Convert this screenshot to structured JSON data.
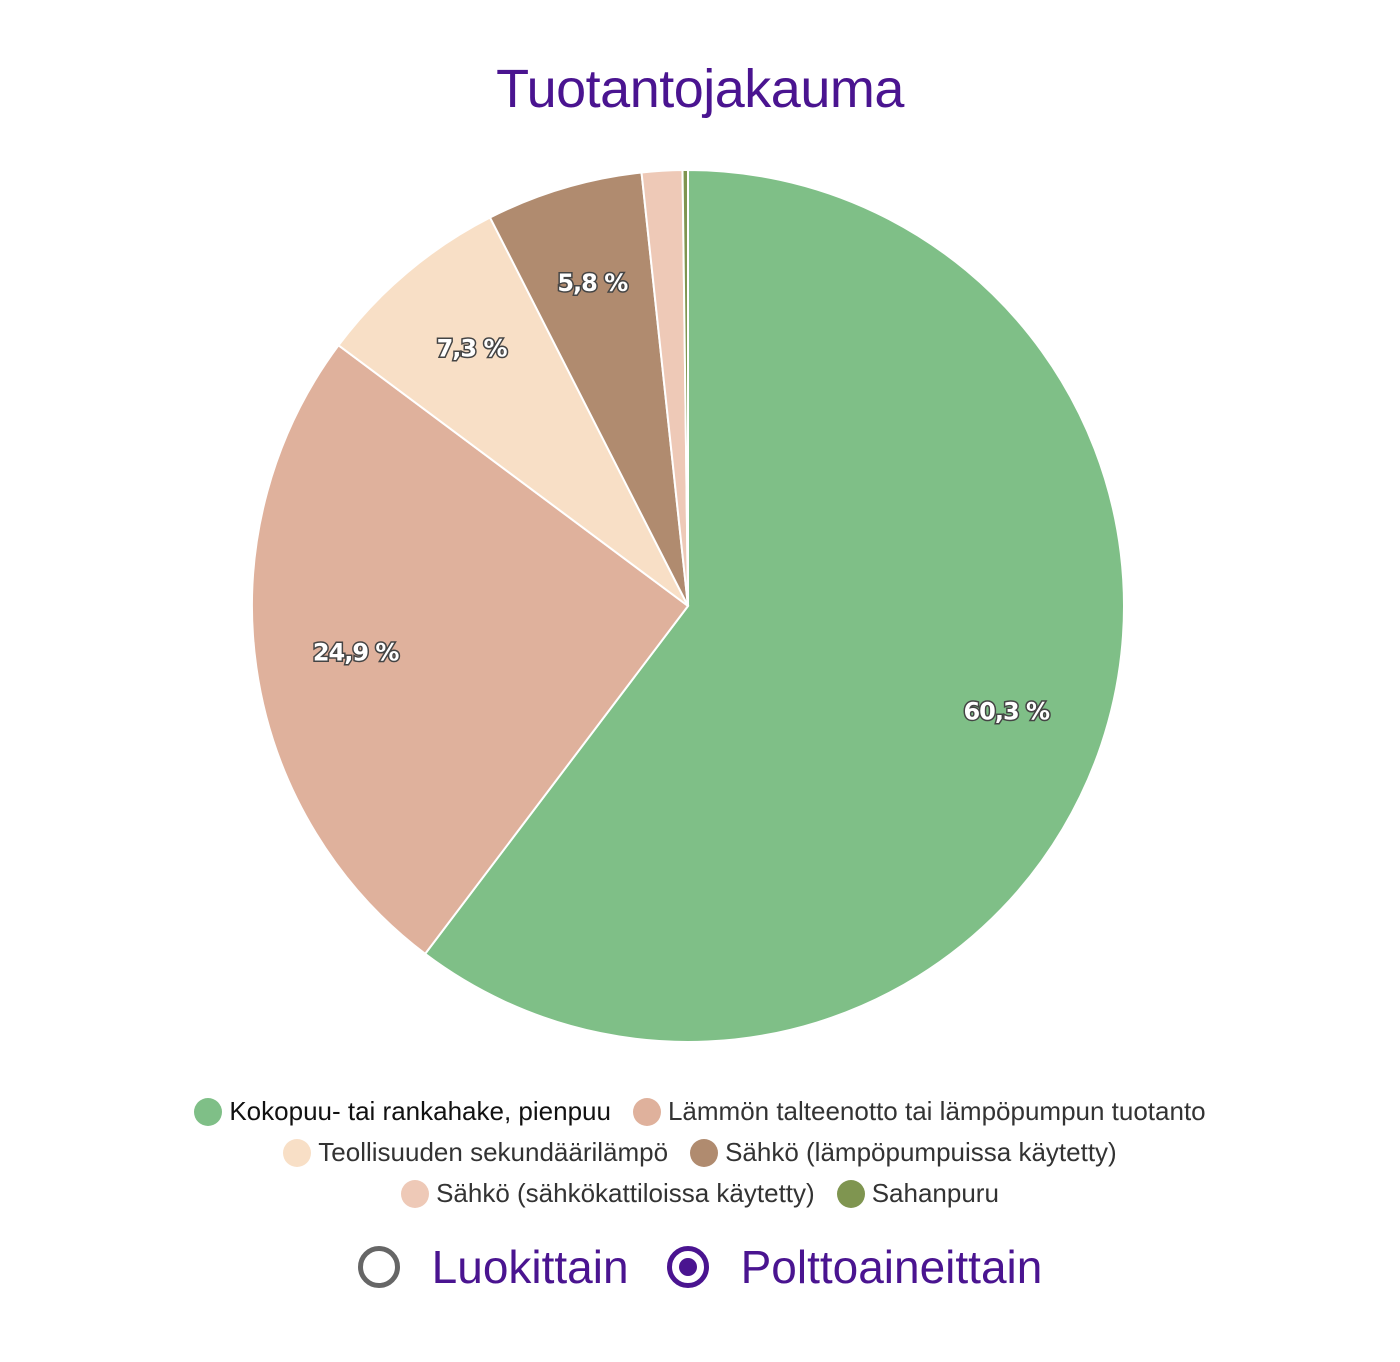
{
  "chart_data": {
    "type": "pie",
    "title": "Tuotantojakauma",
    "series": [
      {
        "name": "Kokopuu- tai rankahake, pienpuu",
        "value": 60.3,
        "label": "60,3 %",
        "color": "#7fbf87"
      },
      {
        "name": "Lämmön talteenotto tai lämpöpumpun tuotanto",
        "value": 24.9,
        "label": "24,9 %",
        "color": "#dfb19c"
      },
      {
        "name": "Teollisuuden sekundäärilämpö",
        "value": 7.3,
        "label": "7,3 %",
        "color": "#f8dfc6"
      },
      {
        "name": "Sähkö (lämpöpumpuissa käytetty)",
        "value": 5.8,
        "label": "5,8 %",
        "color": "#b08b6f"
      },
      {
        "name": "Sähkö (sähkökattiloissa käytetty)",
        "value": 1.5,
        "label": "",
        "color": "#eec9b7"
      },
      {
        "name": "Sahanpuru",
        "value": 0.2,
        "label": "",
        "color": "#7f9550"
      }
    ],
    "legend_position": "bottom"
  },
  "title_color": "#4a1490",
  "mode_switch": {
    "options": [
      {
        "label": "Luokittain",
        "checked": false
      },
      {
        "label": "Polttoaineittain",
        "checked": true
      }
    ]
  }
}
